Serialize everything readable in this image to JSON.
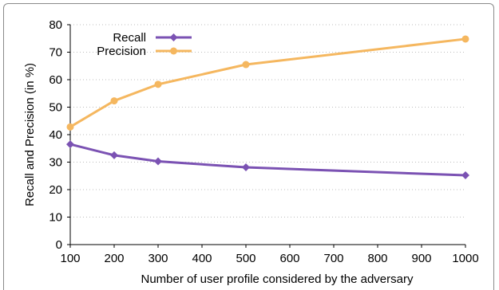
{
  "chart_data": {
    "type": "line",
    "x": [
      100,
      200,
      300,
      500,
      1000
    ],
    "series": [
      {
        "name": "Recall",
        "values": [
          36.5,
          32.5,
          30.3,
          28.1,
          25.2
        ],
        "color": "#7b52b3",
        "marker": "diamond"
      },
      {
        "name": "Precision",
        "values": [
          42.8,
          52.3,
          58.3,
          65.5,
          74.8
        ],
        "color": "#f5b75f",
        "marker": "circle"
      }
    ],
    "xlabel": "Number of user profile considered by the adversary",
    "ylabel": "Recall and Precision (in %)",
    "xlim": [
      100,
      1000
    ],
    "ylim": [
      0,
      80
    ],
    "xticks": [
      100,
      200,
      300,
      400,
      500,
      600,
      700,
      800,
      900,
      1000
    ],
    "yticks": [
      0,
      10,
      20,
      30,
      40,
      50,
      60,
      70,
      80
    ],
    "grid": "horizontal dotted",
    "legend": "top-left"
  }
}
